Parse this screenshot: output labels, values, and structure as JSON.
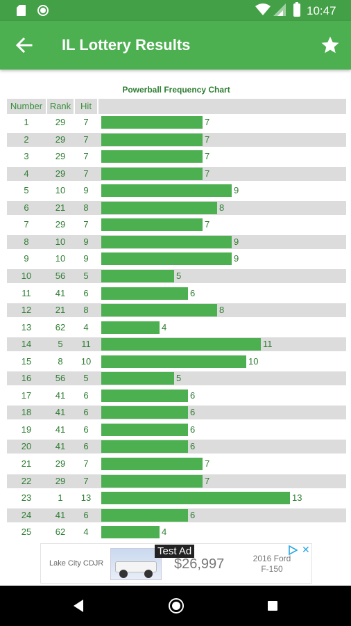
{
  "status_bar": {
    "time": "10:47",
    "icons": [
      "sd-card-icon",
      "circle-status-icon",
      "wifi-icon",
      "cell-signal-icon",
      "battery-icon"
    ]
  },
  "app_bar": {
    "title": "IL Lottery Results",
    "back_icon": "arrow-left-icon",
    "action_icon": "star-icon"
  },
  "table": {
    "title": "Powerball Frequency Chart",
    "headers": {
      "number": "Number",
      "rank": "Rank",
      "hit": "Hit"
    },
    "max_hit": 13,
    "rows": [
      {
        "number": "1",
        "rank": "29",
        "hit": 7
      },
      {
        "number": "2",
        "rank": "29",
        "hit": 7
      },
      {
        "number": "3",
        "rank": "29",
        "hit": 7
      },
      {
        "number": "4",
        "rank": "29",
        "hit": 7
      },
      {
        "number": "5",
        "rank": "10",
        "hit": 9
      },
      {
        "number": "6",
        "rank": "21",
        "hit": 8
      },
      {
        "number": "7",
        "rank": "29",
        "hit": 7
      },
      {
        "number": "8",
        "rank": "10",
        "hit": 9
      },
      {
        "number": "9",
        "rank": "10",
        "hit": 9
      },
      {
        "number": "10",
        "rank": "56",
        "hit": 5
      },
      {
        "number": "11",
        "rank": "41",
        "hit": 6
      },
      {
        "number": "12",
        "rank": "21",
        "hit": 8
      },
      {
        "number": "13",
        "rank": "62",
        "hit": 4
      },
      {
        "number": "14",
        "rank": "5",
        "hit": 11
      },
      {
        "number": "15",
        "rank": "8",
        "hit": 10
      },
      {
        "number": "16",
        "rank": "56",
        "hit": 5
      },
      {
        "number": "17",
        "rank": "41",
        "hit": 6
      },
      {
        "number": "18",
        "rank": "41",
        "hit": 6
      },
      {
        "number": "19",
        "rank": "41",
        "hit": 6
      },
      {
        "number": "20",
        "rank": "41",
        "hit": 6
      },
      {
        "number": "21",
        "rank": "29",
        "hit": 7
      },
      {
        "number": "22",
        "rank": "29",
        "hit": 7
      },
      {
        "number": "23",
        "rank": "1",
        "hit": 13
      },
      {
        "number": "24",
        "rank": "41",
        "hit": 6
      },
      {
        "number": "25",
        "rank": "62",
        "hit": 4
      }
    ]
  },
  "colors": {
    "bar": "#4caf50",
    "app_bar": "#4caf50",
    "status_bar": "#43a047",
    "text": "#2e7d32",
    "row_stripe": "#dcdcdc"
  },
  "ad": {
    "advertiser": "Lake City CDJR",
    "label": "Test Ad",
    "price": "$26,997",
    "model_line1": "2016 Ford",
    "model_line2": "F-150",
    "adchoices_icon": "adchoices-triangle-icon",
    "close_label": "✕"
  },
  "nav_bar": {
    "icons": [
      "nav-back-icon",
      "nav-home-icon",
      "nav-recents-icon"
    ]
  }
}
